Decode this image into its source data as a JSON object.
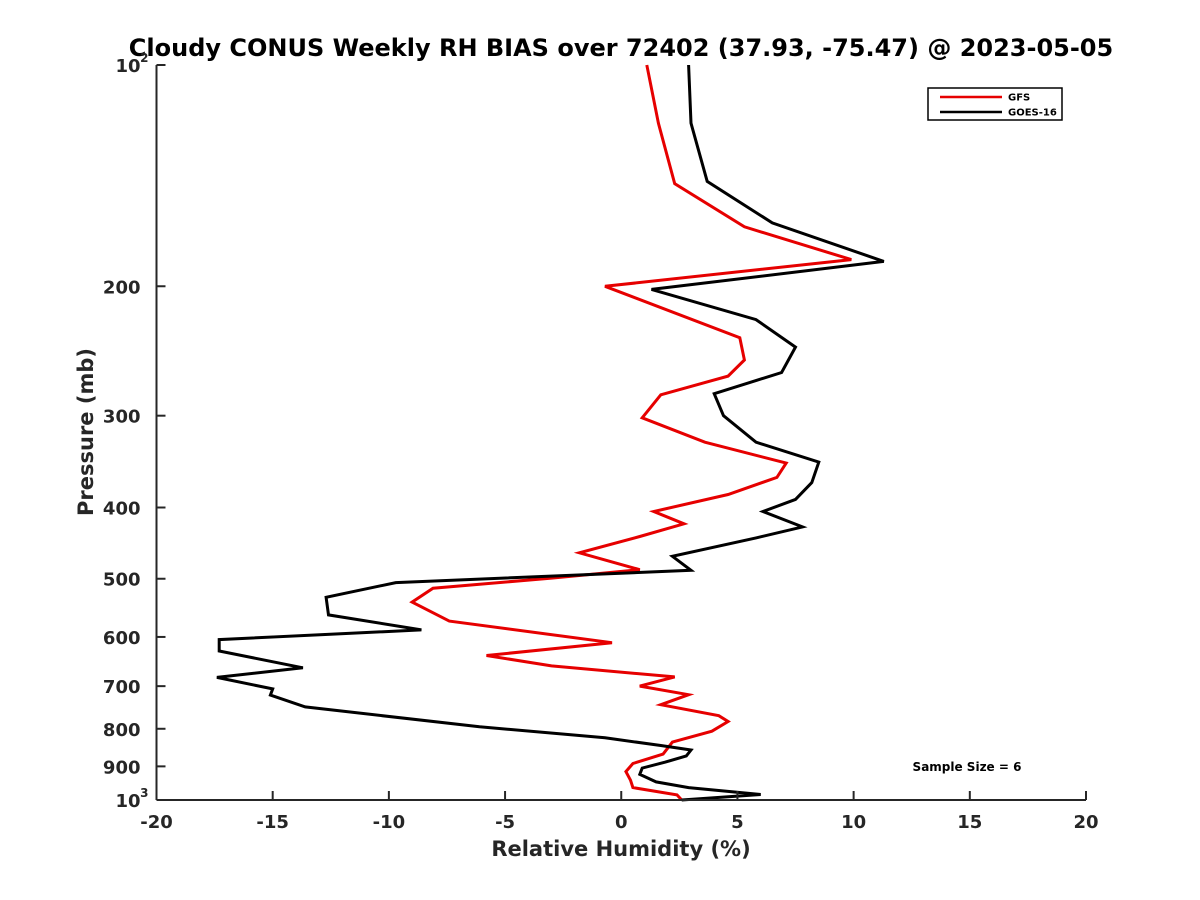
{
  "chart_data": {
    "type": "line",
    "title": "Cloudy CONUS Weekly RH BIAS over 72402 (37.93, -75.47) @ 2023-05-05",
    "xlabel": "Relative Humidity (%)",
    "ylabel": "Pressure (mb)",
    "xlim": [
      -20,
      20
    ],
    "ylim": [
      100,
      1000
    ],
    "yscale": "log",
    "yreverse": true,
    "xticks": [
      "-20",
      "-15",
      "-10",
      "-5",
      "0",
      "5",
      "10",
      "15",
      "20"
    ],
    "ytick_labels": {
      "top_base": "10",
      "top_exp": "2",
      "bottom_base": "10",
      "bottom_exp": "3",
      "middle": [
        "200",
        "300",
        "400",
        "500",
        "600",
        "700",
        "800",
        "900"
      ]
    },
    "legend_position": "top-right",
    "annotation": "Sample Size = 6",
    "series": [
      {
        "name": "GFS",
        "color": "#e60000",
        "x": [
          1.1,
          1.6,
          2.3,
          5.3,
          9.9,
          -0.7,
          5.1,
          5.3,
          4.6,
          1.7,
          0.9,
          3.6,
          7.1,
          6.7,
          4.6,
          1.4,
          2.7,
          0.8,
          -1.8,
          0.8,
          -3.0,
          -8.1,
          -9.0,
          -7.4,
          -0.4,
          -5.8,
          -3.0,
          2.3,
          0.8,
          2.9,
          1.7,
          4.2,
          4.6,
          3.9,
          2.2,
          1.8,
          0.5,
          0.2,
          0.4,
          0.5,
          2.4,
          2.6
        ],
        "y": [
          100,
          120,
          145,
          166,
          184,
          200,
          235,
          252,
          265,
          281,
          302,
          326,
          348,
          364,
          384,
          405,
          421,
          438,
          461,
          486,
          499,
          515,
          538,
          571,
          611,
          636,
          657,
          680,
          700,
          719,
          742,
          768,
          782,
          806,
          834,
          866,
          892,
          915,
          940,
          962,
          984,
          1000
        ],
        "label_y": 97,
        "line_x1": 940,
        "line_x2": 1002
      },
      {
        "name": "GOES-16",
        "color": "#000000",
        "x": [
          2.9,
          3.0,
          3.7,
          6.5,
          11.3,
          1.3,
          5.8,
          7.5,
          6.9,
          4.0,
          4.4,
          5.8,
          8.5,
          8.2,
          7.5,
          6.1,
          7.8,
          5.8,
          2.2,
          3.0,
          -9.7,
          -12.7,
          -12.6,
          -8.6,
          -17.3,
          -17.3,
          -13.7,
          -17.4,
          -15.0,
          -15.1,
          -13.6,
          -6.1,
          -0.7,
          1.7,
          3.0,
          2.8,
          1.9,
          0.9,
          0.8,
          1.5,
          2.9,
          6.0,
          2.6
        ],
        "y": [
          100,
          120,
          144,
          164,
          185,
          202,
          222,
          242,
          262,
          280,
          300,
          326,
          347,
          370,
          390,
          405,
          425,
          440,
          466,
          487,
          506,
          530,
          560,
          587,
          605,
          627,
          661,
          681,
          706,
          720,
          747,
          795,
          823,
          843,
          855,
          871,
          888,
          905,
          923,
          945,
          962,
          983,
          1000
        ],
        "label_y": 112,
        "line_x1": 940,
        "line_x2": 1002
      }
    ]
  }
}
